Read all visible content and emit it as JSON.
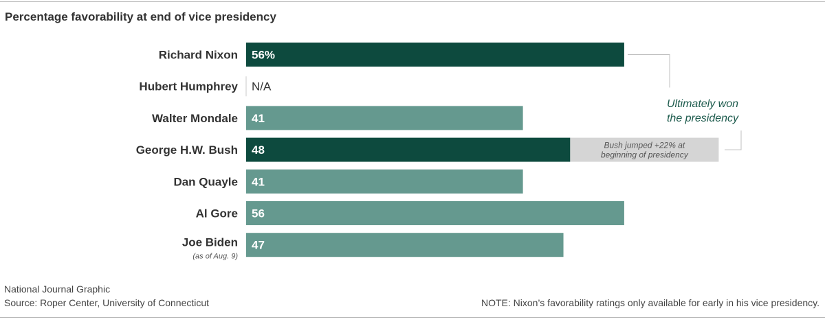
{
  "chart_data": {
    "type": "bar",
    "title": "Percentage favorability at end of vice presidency",
    "categories": [
      "Richard Nixon",
      "Hubert Humphrey",
      "Walter Mondale",
      "George H.W. Bush",
      "Dan Quayle",
      "Al Gore",
      "Joe Biden"
    ],
    "category_notes": [
      "",
      "",
      "",
      "",
      "",
      "",
      "(as of Aug. 9)"
    ],
    "values": [
      56,
      null,
      41,
      48,
      41,
      56,
      47
    ],
    "value_labels": [
      "56%",
      "N/A",
      "41",
      "48",
      "41",
      "56",
      "47"
    ],
    "won_presidency": [
      true,
      false,
      false,
      true,
      false,
      false,
      false
    ],
    "annotations": {
      "won_label": "Ultimately won the presidency",
      "bush_jump": {
        "category": "George H.W. Bush",
        "delta": 22,
        "text_line1": "Bush jumped +22% at",
        "text_line2": "beginning of presidency"
      }
    },
    "xlim": [
      0,
      70
    ],
    "grid": false,
    "colors": {
      "won": "#0d4a3e",
      "other": "#65998f",
      "jump": "#d5d5d5",
      "annotation": "#1c5a4c",
      "na_divider": "#c8c8c8"
    }
  },
  "footer": {
    "credit": "National Journal Graphic",
    "source": "Source: Roper Center, University of Connecticut",
    "note": "NOTE: Nixon’s favorability ratings only available for early in his vice presidency."
  }
}
